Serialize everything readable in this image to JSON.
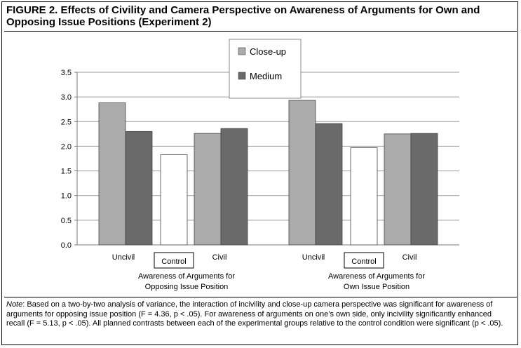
{
  "figure": {
    "title": "FIGURE 2.    Effects of Civility and Camera Perspective on Awareness of Arguments for Own and Opposing Issue Positions (Experiment 2)",
    "note_label": "Note",
    "note_text": ": Based on a two-by-two analysis of variance, the interaction of incivility and close-up camera perspective was significant for awareness of arguments for opposing issue position (F = 4.36, p < .05). For awareness of arguments on one’s own side, only incivility significantly enhanced recall (F = 5.13, p < .05). All planned contrasts between each of the experimental groups relative to the control condition were significant (p < .05)."
  },
  "colors": {
    "close_up": "#ababab",
    "medium": "#6a6a6a",
    "control": "#ffffff",
    "bar_stroke": "#444444",
    "grid": "#9a9a9a",
    "axis": "#7a7a7a"
  },
  "chart_data": {
    "type": "bar",
    "ylim": [
      0,
      3.5
    ],
    "yticks": [
      "0.0",
      "0.5",
      "1.0",
      "1.5",
      "2.0",
      "2.5",
      "3.0",
      "3.5"
    ],
    "grid": true,
    "legend_position": "top-center",
    "series": [
      {
        "name": "Close-up",
        "values": [
          2.88,
          2.26,
          2.93,
          2.25
        ]
      },
      {
        "name": "Medium",
        "values": [
          2.3,
          2.36,
          2.46,
          2.26
        ]
      }
    ],
    "control": {
      "label": "Control",
      "values": [
        1.83,
        1.97
      ]
    },
    "groups": [
      {
        "title_line1": "Awareness of Arguments for",
        "title_line2": "Opposing Issue Position",
        "uncivil_label": "Uncivil",
        "civil_label": "Civil"
      },
      {
        "title_line1": "Awareness of Arguments for",
        "title_line2": "Own Issue Position",
        "uncivil_label": "Uncivil",
        "civil_label": "Civil"
      }
    ]
  }
}
